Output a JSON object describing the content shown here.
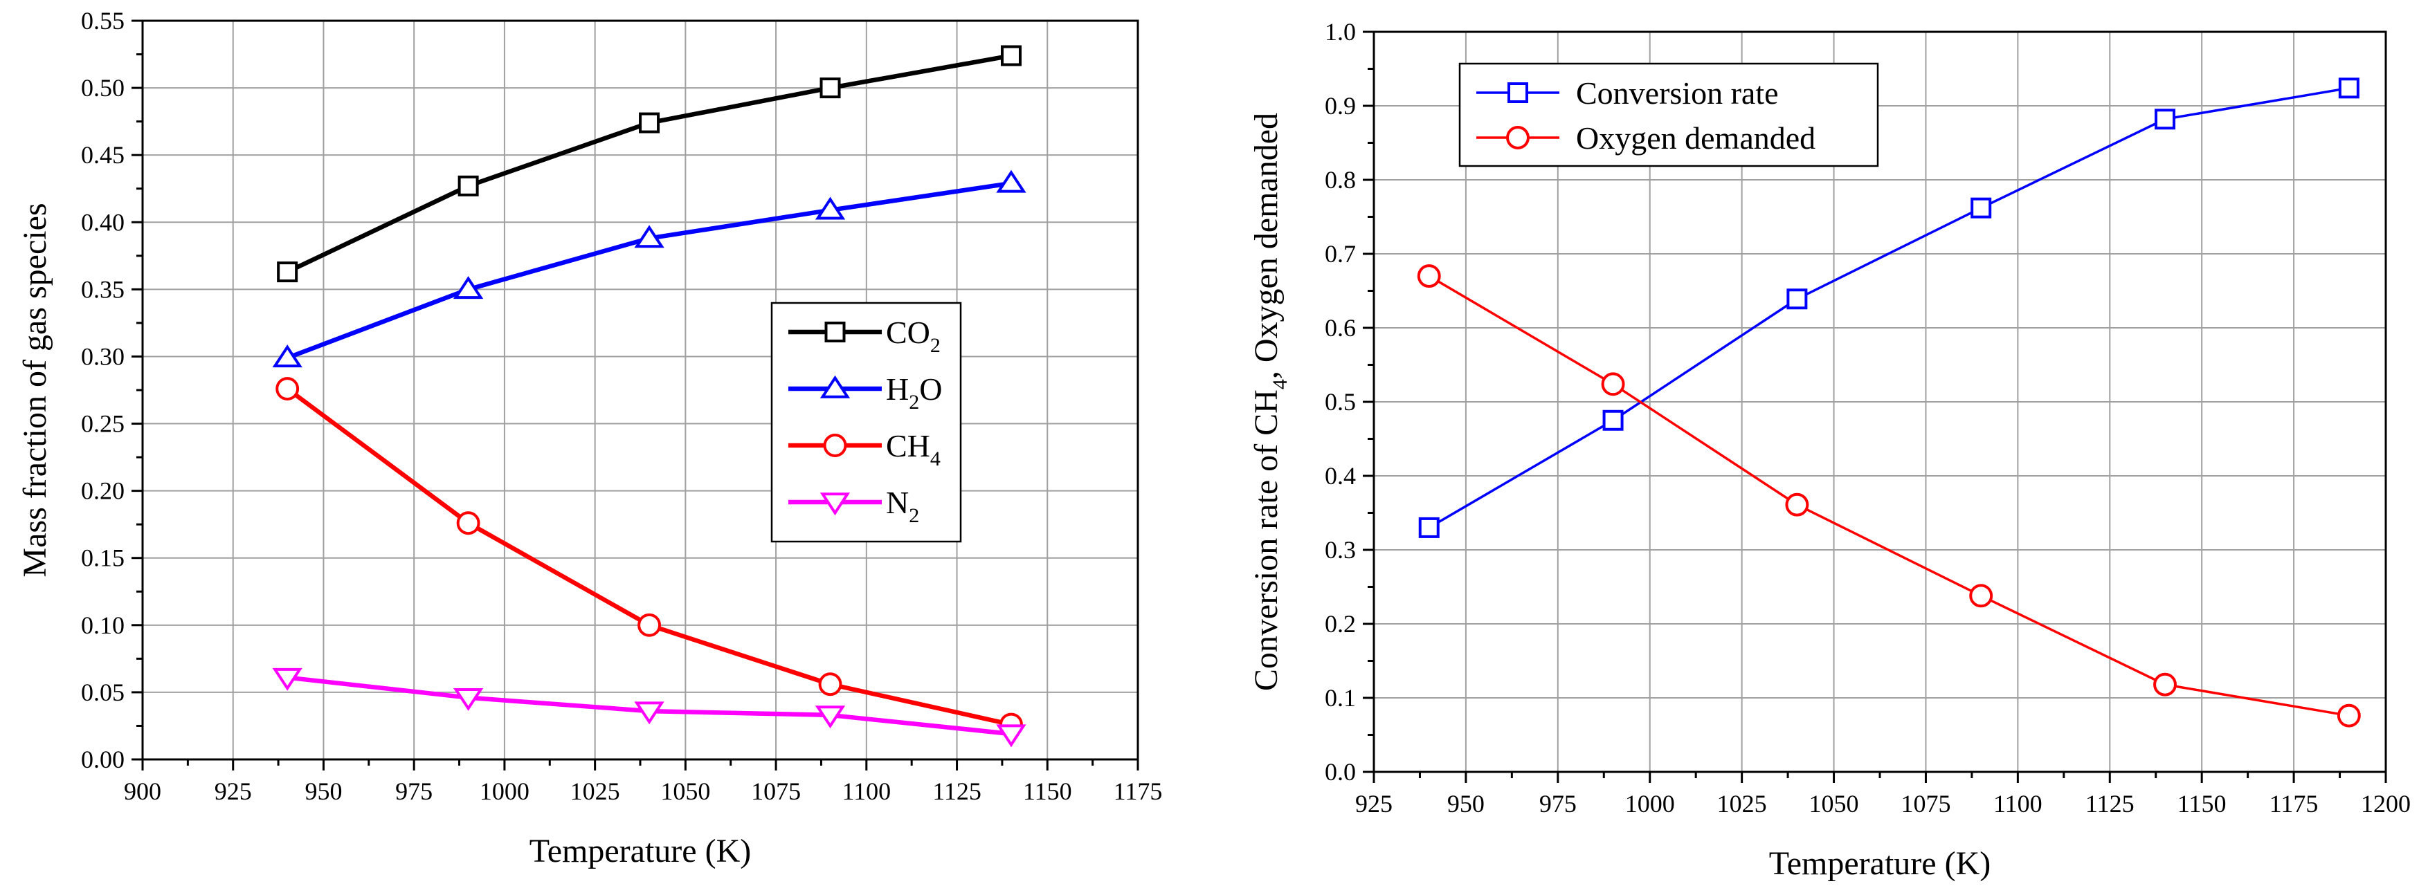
{
  "chart_data": [
    {
      "type": "line",
      "xlabel": "Temperature (K)",
      "ylabel": "Mass fraction of gas species",
      "xlim": [
        900,
        1175
      ],
      "ylim": [
        0,
        0.55
      ],
      "xticks": [
        "900",
        "925",
        "950",
        "975",
        "1000",
        "1025",
        "1050",
        "1075",
        "1100",
        "1125",
        "1150",
        "1175"
      ],
      "yticks": [
        "0.00",
        "0.05",
        "0.10",
        "0.15",
        "0.20",
        "0.25",
        "0.30",
        "0.35",
        "0.40",
        "0.45",
        "0.50",
        "0.55"
      ],
      "grid": true,
      "legend_position": "center-right",
      "x": [
        940,
        990,
        1040,
        1090,
        1140
      ],
      "series": [
        {
          "name": "CO",
          "sub": "2",
          "tail": "",
          "color": "#000000",
          "marker": "square",
          "values": [
            0.363,
            0.427,
            0.474,
            0.5,
            0.524
          ]
        },
        {
          "name": "H",
          "sub": "2",
          "tail": "O",
          "color": "#0000ff",
          "marker": "triangle-up",
          "values": [
            0.299,
            0.35,
            0.388,
            0.409,
            0.429
          ]
        },
        {
          "name": "CH",
          "sub": "4",
          "tail": "",
          "color": "#ff0000",
          "marker": "circle",
          "values": [
            0.276,
            0.176,
            0.1,
            0.056,
            0.026
          ]
        },
        {
          "name": "N",
          "sub": "2",
          "tail": "",
          "color": "#ff00ff",
          "marker": "triangle-down",
          "values": [
            0.061,
            0.046,
            0.036,
            0.033,
            0.019
          ]
        }
      ]
    },
    {
      "type": "line",
      "xlabel": "Temperature (K)",
      "ylabel_main": "Conversion rate of CH",
      "ylabel_sub": "4",
      "ylabel_tail": ", Oxygen demanded",
      "xlim": [
        925,
        1200
      ],
      "ylim": [
        0,
        1.0
      ],
      "xticks": [
        "925",
        "950",
        "975",
        "1000",
        "1025",
        "1050",
        "1075",
        "1100",
        "1125",
        "1150",
        "1175",
        "1200"
      ],
      "yticks": [
        "0.0",
        "0.1",
        "0.2",
        "0.3",
        "0.4",
        "0.5",
        "0.6",
        "0.7",
        "0.8",
        "0.9",
        "1.0"
      ],
      "grid": true,
      "legend_position": "top-left",
      "x": [
        940,
        990,
        1040,
        1090,
        1140,
        1190
      ],
      "series": [
        {
          "name": "Conversion rate",
          "sub": "",
          "tail": "",
          "color": "#0000ff",
          "marker": "square",
          "values": [
            0.33,
            0.475,
            0.639,
            0.762,
            0.882,
            0.924
          ]
        },
        {
          "name": "Oxygen demanded",
          "sub": "",
          "tail": "",
          "color": "#ff0000",
          "marker": "circle",
          "values": [
            0.67,
            0.524,
            0.361,
            0.238,
            0.118,
            0.076
          ]
        }
      ]
    }
  ]
}
